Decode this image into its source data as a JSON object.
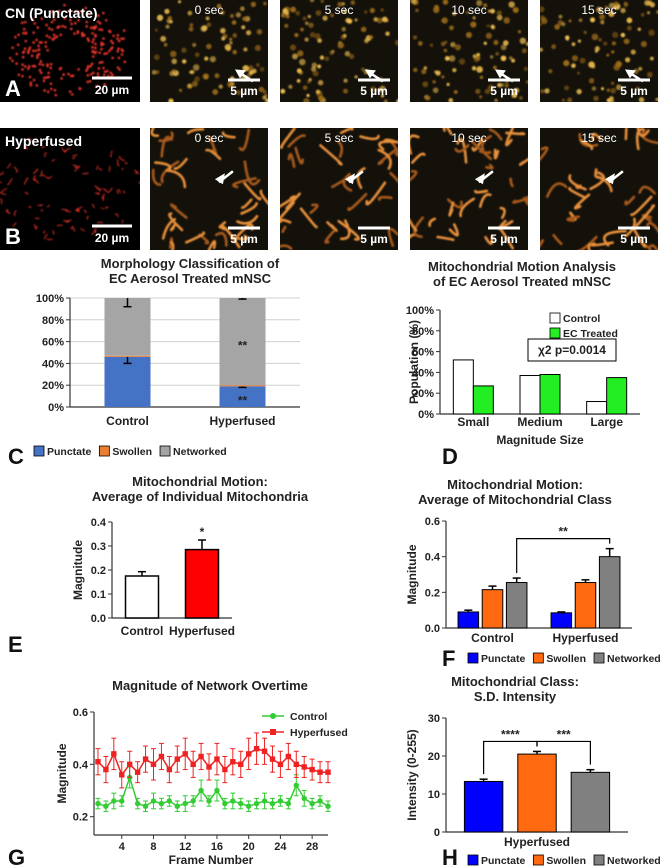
{
  "image_rows": [
    {
      "letter": "A",
      "label": "CN (Punctate)",
      "scale": "20 µm",
      "frames": [
        {
          "time": "0 sec",
          "scale": "5 µm"
        },
        {
          "time": "5 sec",
          "scale": "5 µm"
        },
        {
          "time": "10 sec",
          "scale": "5 µm"
        },
        {
          "time": "15 sec",
          "scale": "5 µm"
        }
      ]
    },
    {
      "letter": "B",
      "label": "Hyperfused",
      "scale": "20 µm",
      "frames": [
        {
          "time": "0 sec",
          "scale": "5 µm"
        },
        {
          "time": "5 sec",
          "scale": "5 µm"
        },
        {
          "time": "10 sec",
          "scale": "5 µm"
        },
        {
          "time": "15 sec",
          "scale": "5 µm"
        }
      ]
    }
  ],
  "chart_data": [
    {
      "type": "bar",
      "stacked": true,
      "panel": "C",
      "title": [
        "Morphology Classification of",
        "EC Aerosol Treated mNSC"
      ],
      "categories": [
        "Control",
        "Hyperfused"
      ],
      "series": [
        {
          "name": "Punctate",
          "color": "#4472c4",
          "values": [
            46,
            19
          ],
          "errors": [
            6,
            1
          ]
        },
        {
          "name": "Swollen",
          "color": "#ed7d31",
          "values": [
            1,
            1
          ]
        },
        {
          "name": "Networked",
          "color": "#a5a5a5",
          "values": [
            53,
            80
          ],
          "errors": [
            8,
            1
          ]
        }
      ],
      "ylim": [
        0,
        100
      ],
      "yticks": [
        {
          "value": 0,
          "label": "0%"
        },
        {
          "value": 20,
          "label": "20%"
        },
        {
          "value": 40,
          "label": "40%"
        },
        {
          "value": 60,
          "label": "60%"
        },
        {
          "value": 80,
          "label": "80%"
        },
        {
          "value": 100,
          "label": "100%"
        }
      ],
      "grid": true,
      "legend": "bottom",
      "annotations": [
        {
          "text": "**",
          "series": 2,
          "category": 1
        },
        {
          "text": "**",
          "series": 0,
          "category": 1
        }
      ]
    },
    {
      "type": "bar",
      "panel": "D",
      "title": [
        "Mitochondrial Motion Analysis",
        "of EC Aerosol Treated mNSC"
      ],
      "categories": [
        "Small",
        "Medium",
        "Large"
      ],
      "series": [
        {
          "name": "Control",
          "color": "#ffffff",
          "values": [
            52,
            37,
            12
          ]
        },
        {
          "name": "EC Treated",
          "color": "#22ee22",
          "values": [
            27,
            38,
            35
          ]
        }
      ],
      "ylim": [
        0,
        100
      ],
      "yticks": [
        {
          "value": 0,
          "label": "0%"
        },
        {
          "value": 20,
          "label": "20%"
        },
        {
          "value": 40,
          "label": "40%"
        },
        {
          "value": 60,
          "label": "60%"
        },
        {
          "value": 80,
          "label": "80%"
        },
        {
          "value": 100,
          "label": "100%"
        }
      ],
      "ylabel": "Population (%)",
      "xlabel": "Magnitude Size",
      "grid": false,
      "legend": "top-right",
      "annotations": [
        {
          "text": "χ2 p=0.0014"
        }
      ]
    },
    {
      "type": "bar",
      "panel": "E",
      "title": [
        "Mitochondrial Motion:",
        "Average of Individual Mitochondria"
      ],
      "categories": [
        "Control",
        "Hyperfused"
      ],
      "values": [
        0.175,
        0.285
      ],
      "errors": [
        0.018,
        0.04
      ],
      "colors": [
        "#ffffff",
        "#ff0000"
      ],
      "ylim": [
        0,
        0.4
      ],
      "yticks": [
        {
          "value": 0,
          "label": "0.0"
        },
        0.1,
        0.2,
        0.3,
        0.4
      ],
      "ylabel": "Magnitude",
      "grid": false,
      "annotations": [
        {
          "text": "*",
          "category": 1
        }
      ]
    },
    {
      "type": "bar",
      "panel": "F",
      "title": [
        "Mitochondrial Motion:",
        "Average of Mitochondrial Class"
      ],
      "categories": [
        "Control",
        "Hyperfused"
      ],
      "series": [
        {
          "name": "Punctate",
          "color": "#0000ff",
          "values": [
            0.09,
            0.085
          ],
          "errors": [
            0.01,
            0.005
          ]
        },
        {
          "name": "Swollen",
          "color": "#ff6a10",
          "values": [
            0.215,
            0.255
          ],
          "errors": [
            0.02,
            0.015
          ]
        },
        {
          "name": "Networked",
          "color": "#808080",
          "values": [
            0.255,
            0.4
          ],
          "errors": [
            0.025,
            0.045
          ]
        }
      ],
      "ylim": [
        0,
        0.6
      ],
      "yticks": [
        {
          "value": 0,
          "label": "0.0"
        },
        0.2,
        0.4,
        0.6
      ],
      "ylabel": "Magnitude",
      "grid": false,
      "legend": "bottom",
      "annotations": [
        {
          "text": "**",
          "from": {
            "series": 2,
            "category": 0
          },
          "to": {
            "series": 2,
            "category": 1
          }
        }
      ]
    },
    {
      "type": "line",
      "panel": "G",
      "title": [
        "Magnitude of Network Overtime"
      ],
      "x": [
        1,
        2,
        3,
        4,
        5,
        6,
        7,
        8,
        9,
        10,
        11,
        12,
        13,
        14,
        15,
        16,
        17,
        18,
        19,
        20,
        21,
        22,
        23,
        24,
        25,
        26,
        27,
        28,
        29,
        30
      ],
      "series": [
        {
          "name": "Control",
          "color": "#33cc33",
          "marker": "circle",
          "values": [
            0.25,
            0.24,
            0.26,
            0.26,
            0.35,
            0.25,
            0.24,
            0.26,
            0.25,
            0.26,
            0.24,
            0.25,
            0.26,
            0.3,
            0.26,
            0.3,
            0.25,
            0.26,
            0.25,
            0.24,
            0.25,
            0.26,
            0.25,
            0.26,
            0.25,
            0.32,
            0.27,
            0.25,
            0.26,
            0.24
          ],
          "errors": [
            0.02,
            0.02,
            0.03,
            0.02,
            0.04,
            0.02,
            0.02,
            0.03,
            0.02,
            0.02,
            0.02,
            0.03,
            0.02,
            0.04,
            0.02,
            0.04,
            0.02,
            0.03,
            0.02,
            0.02,
            0.02,
            0.03,
            0.02,
            0.02,
            0.02,
            0.04,
            0.03,
            0.02,
            0.02,
            0.02
          ]
        },
        {
          "name": "Hyperfused",
          "color": "#ee2222",
          "marker": "square",
          "values": [
            0.41,
            0.38,
            0.44,
            0.36,
            0.4,
            0.37,
            0.42,
            0.4,
            0.43,
            0.38,
            0.42,
            0.44,
            0.4,
            0.43,
            0.39,
            0.42,
            0.38,
            0.41,
            0.4,
            0.44,
            0.46,
            0.45,
            0.42,
            0.4,
            0.43,
            0.4,
            0.39,
            0.38,
            0.37,
            0.37
          ],
          "errors": [
            0.05,
            0.05,
            0.06,
            0.05,
            0.05,
            0.04,
            0.05,
            0.06,
            0.05,
            0.05,
            0.05,
            0.06,
            0.05,
            0.05,
            0.05,
            0.06,
            0.05,
            0.05,
            0.05,
            0.06,
            0.06,
            0.05,
            0.05,
            0.05,
            0.05,
            0.05,
            0.04,
            0.04,
            0.04,
            0.04
          ]
        }
      ],
      "xlim": [
        0.5,
        30
      ],
      "xticks": [
        4,
        8,
        12,
        16,
        20,
        24,
        28
      ],
      "ylim": [
        0.13,
        0.6
      ],
      "yticks": [
        0.2,
        0.4,
        0.6
      ],
      "xlabel": "Frame Number",
      "ylabel": "Magnitude",
      "grid": false,
      "legend": "top-right"
    },
    {
      "type": "bar",
      "panel": "H",
      "title": [
        "Mitochondrial Class:",
        "S.D. Intensity"
      ],
      "categories": [
        "Hyperfused"
      ],
      "series": [
        {
          "name": "Punctate",
          "color": "#0000ff",
          "values": [
            13.3
          ],
          "errors": [
            0.6
          ]
        },
        {
          "name": "Swollen",
          "color": "#ff6a10",
          "values": [
            20.5
          ],
          "errors": [
            0.7
          ]
        },
        {
          "name": "Networked",
          "color": "#808080",
          "values": [
            15.7
          ],
          "errors": [
            0.7
          ]
        }
      ],
      "ylim": [
        0,
        30
      ],
      "yticks": [
        0,
        10,
        20,
        30
      ],
      "ylabel": "Intensity (0-255)",
      "grid": false,
      "legend": "bottom",
      "annotations": [
        {
          "text": "****",
          "from": {
            "series": 0,
            "category": 0
          },
          "to": {
            "series": 1,
            "category": 0
          }
        },
        {
          "text": "***",
          "from": {
            "series": 1,
            "category": 0
          },
          "to": {
            "series": 2,
            "category": 0
          }
        }
      ]
    }
  ]
}
